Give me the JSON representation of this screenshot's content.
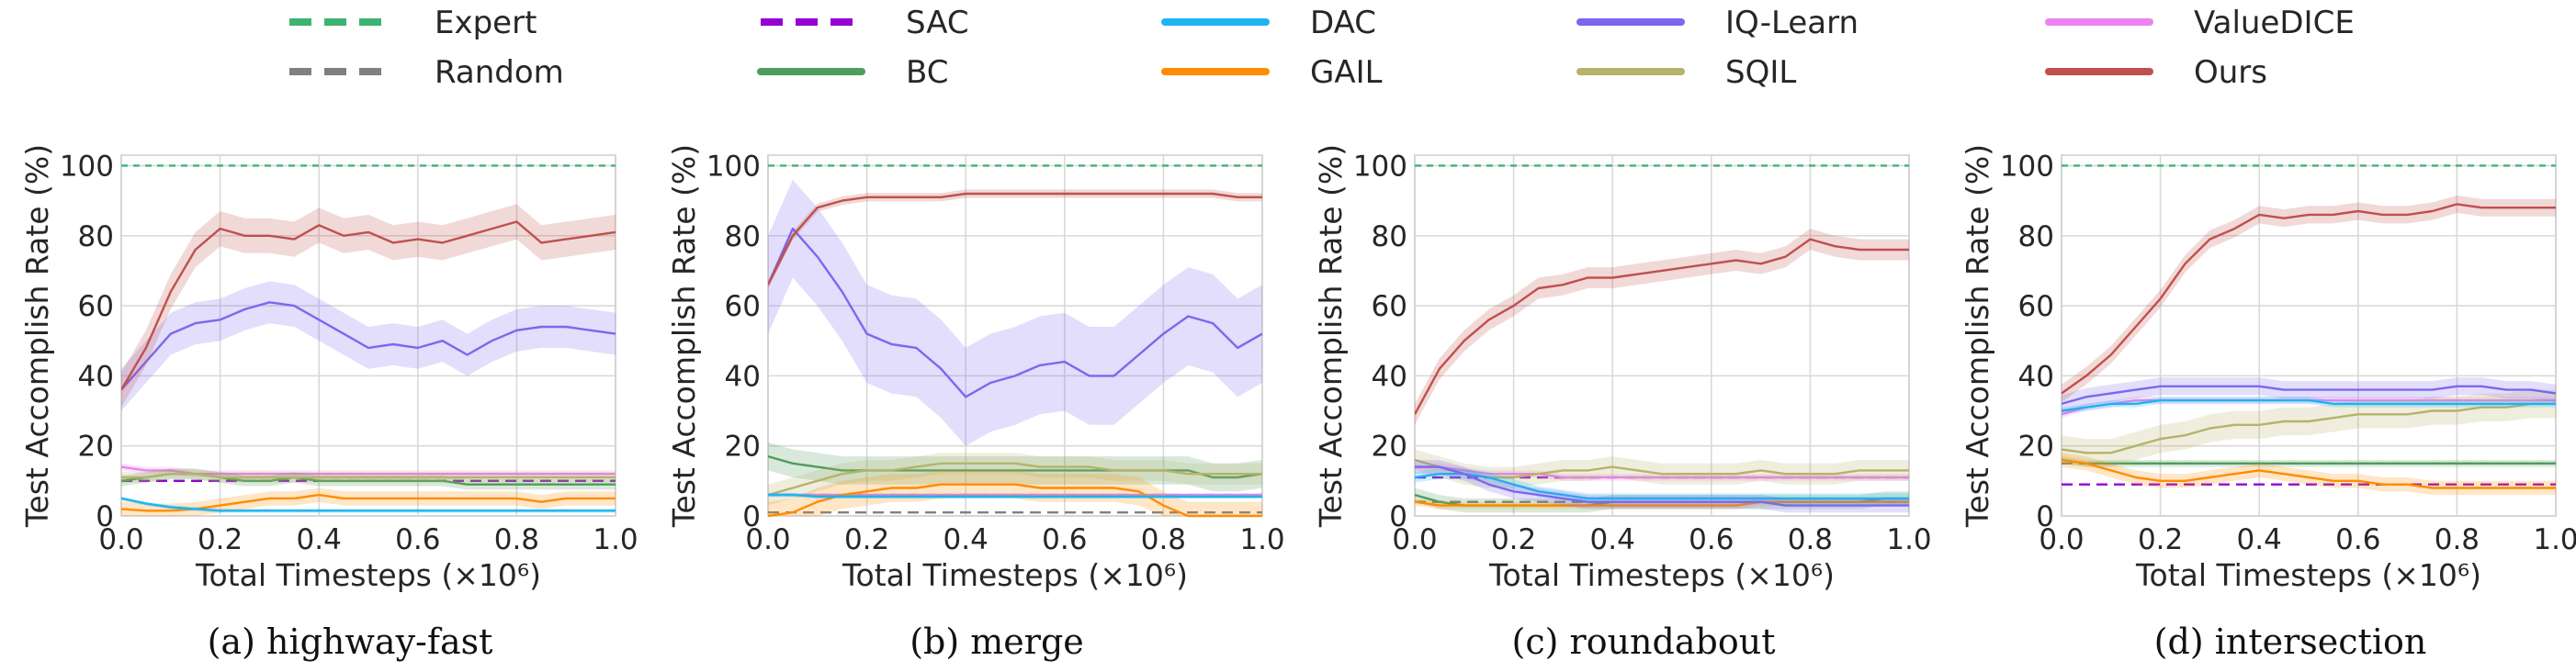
{
  "legend": {
    "placement": "top",
    "entries": [
      {
        "name": "Expert",
        "color": "#3cb371",
        "dash": true
      },
      {
        "name": "SAC",
        "color": "#9400d3",
        "dash": true
      },
      {
        "name": "DAC",
        "color": "#1eb4f0",
        "dash": false
      },
      {
        "name": "IQ-Learn",
        "color": "#7b68ee",
        "dash": false
      },
      {
        "name": "ValueDICE",
        "color": "#ee82ee",
        "dash": false
      },
      {
        "name": "Random",
        "color": "#808080",
        "dash": true
      },
      {
        "name": "BC",
        "color": "#4f9d5b",
        "dash": false
      },
      {
        "name": "GAIL",
        "color": "#ff8c00",
        "dash": false
      },
      {
        "name": "SQIL",
        "color": "#b5b36b",
        "dash": false
      },
      {
        "name": "Ours",
        "color": "#c0504d",
        "dash": false
      }
    ]
  },
  "chart_data": [
    {
      "type": "line",
      "caption": "(a) highway-fast",
      "xlabel": "Total Timesteps (×10⁶)",
      "ylabel": "Test Accomplish Rate (%)",
      "xlim": [
        0,
        1
      ],
      "ylim": [
        0,
        103
      ],
      "xticks": [
        "0.0",
        "0.2",
        "0.4",
        "0.6",
        "0.8",
        "1.0"
      ],
      "yticks": [
        "0",
        "20",
        "40",
        "60",
        "80",
        "100"
      ],
      "grid": true,
      "x": [
        0,
        0.05,
        0.1,
        0.15,
        0.2,
        0.25,
        0.3,
        0.35,
        0.4,
        0.45,
        0.5,
        0.55,
        0.6,
        0.65,
        0.7,
        0.75,
        0.8,
        0.85,
        0.9,
        0.95,
        1.0
      ],
      "series": [
        {
          "name": "Expert",
          "const": 100
        },
        {
          "name": "Random",
          "const": 10
        },
        {
          "name": "SAC",
          "const": 10
        },
        {
          "name": "Ours",
          "values": [
            36,
            48,
            64,
            76,
            82,
            80,
            80,
            79,
            83,
            80,
            81,
            78,
            79,
            78,
            80,
            82,
            84,
            78,
            79,
            80,
            81
          ],
          "band": 5
        },
        {
          "name": "IQ-Learn",
          "values": [
            36,
            44,
            52,
            55,
            56,
            59,
            61,
            60,
            56,
            52,
            48,
            49,
            48,
            50,
            46,
            50,
            53,
            54,
            54,
            53,
            52
          ],
          "band": 6
        },
        {
          "name": "ValueDICE",
          "values": [
            14,
            13,
            13,
            12,
            12,
            12,
            12,
            12,
            12,
            12,
            12,
            12,
            12,
            12,
            12,
            12,
            12,
            12,
            12,
            12,
            12
          ],
          "band": 1
        },
        {
          "name": "BC",
          "values": [
            10,
            11,
            12,
            12,
            11,
            10,
            10,
            11,
            10,
            10,
            10,
            10,
            10,
            10,
            9,
            9,
            9,
            9,
            9,
            9,
            9
          ],
          "band": 1.5
        },
        {
          "name": "SQIL",
          "values": [
            11,
            11,
            12,
            12,
            11,
            11,
            11,
            11,
            11,
            11,
            11,
            11,
            11,
            11,
            11,
            11,
            11,
            11,
            11,
            11,
            11
          ],
          "band": 1.5
        },
        {
          "name": "GAIL",
          "values": [
            2,
            1.5,
            1.5,
            2,
            3,
            4,
            5,
            5,
            6,
            5,
            5,
            5,
            5,
            5,
            5,
            5,
            5,
            4,
            5,
            5,
            5
          ],
          "band": 2
        },
        {
          "name": "DAC",
          "values": [
            5,
            3.5,
            2.5,
            2,
            1.5,
            1.5,
            1.5,
            1.5,
            1.5,
            1.5,
            1.5,
            1.5,
            1.5,
            1.5,
            1.5,
            1.5,
            1.5,
            1.5,
            1.5,
            1.5,
            1.5
          ],
          "band": 0.6
        }
      ]
    },
    {
      "type": "line",
      "caption": "(b) merge",
      "xlabel": "Total Timesteps (×10⁶)",
      "ylabel": "Test Accomplish Rate (%)",
      "xlim": [
        0,
        1
      ],
      "ylim": [
        0,
        103
      ],
      "xticks": [
        "0.0",
        "0.2",
        "0.4",
        "0.6",
        "0.8",
        "1.0"
      ],
      "yticks": [
        "0",
        "20",
        "40",
        "60",
        "80",
        "100"
      ],
      "grid": true,
      "x": [
        0,
        0.05,
        0.1,
        0.15,
        0.2,
        0.25,
        0.3,
        0.35,
        0.4,
        0.45,
        0.5,
        0.55,
        0.6,
        0.65,
        0.7,
        0.75,
        0.8,
        0.85,
        0.9,
        0.95,
        1.0
      ],
      "series": [
        {
          "name": "Expert",
          "const": 100
        },
        {
          "name": "Random",
          "const": 1
        },
        {
          "name": "SAC",
          "const": 6
        },
        {
          "name": "Ours",
          "values": [
            66,
            80,
            88,
            90,
            91,
            91,
            91,
            91,
            92,
            92,
            92,
            92,
            92,
            92,
            92,
            92,
            92,
            92,
            92,
            91,
            91
          ],
          "band": 1.2
        },
        {
          "name": "IQ-Learn",
          "values": [
            66,
            82,
            74,
            64,
            52,
            49,
            48,
            42,
            34,
            38,
            40,
            43,
            44,
            40,
            40,
            46,
            52,
            57,
            55,
            48,
            52
          ],
          "band": 14
        },
        {
          "name": "BC",
          "values": [
            17,
            15,
            14,
            13,
            13,
            13,
            13,
            13,
            13,
            13,
            13,
            13,
            13,
            13,
            13,
            13,
            13,
            13,
            11,
            11,
            12
          ],
          "band": 4
        },
        {
          "name": "SQIL",
          "values": [
            6,
            8,
            10,
            12,
            13,
            13,
            14,
            15,
            15,
            15,
            15,
            14,
            14,
            14,
            13,
            13,
            13,
            12,
            12,
            12,
            12
          ],
          "band": 3
        },
        {
          "name": "GAIL",
          "values": [
            0,
            1,
            4,
            6,
            7,
            8,
            8,
            9,
            9,
            9,
            9,
            8,
            8,
            8,
            8,
            7,
            3,
            0,
            0,
            0,
            0
          ],
          "band": 4
        },
        {
          "name": "DAC",
          "values": [
            6,
            6,
            5.5,
            5.5,
            5.5,
            5.5,
            5.5,
            5.5,
            5.5,
            5.5,
            5.5,
            5.5,
            5.5,
            5.5,
            5.5,
            5.5,
            5.5,
            5.5,
            5.5,
            5.5,
            5.5
          ],
          "band": 0.6
        },
        {
          "name": "ValueDICE",
          "values": [
            6,
            6,
            6,
            6,
            6,
            6,
            6,
            6,
            6,
            6,
            6,
            6,
            6,
            6,
            6,
            6,
            6,
            6,
            6,
            6,
            6
          ],
          "band": 0.4
        }
      ]
    },
    {
      "type": "line",
      "caption": "(c) roundabout",
      "xlabel": "Total Timesteps (×10⁶)",
      "ylabel": "Test Accomplish Rate (%)",
      "xlim": [
        0,
        1
      ],
      "ylim": [
        0,
        103
      ],
      "xticks": [
        "0.0",
        "0.2",
        "0.4",
        "0.6",
        "0.8",
        "1.0"
      ],
      "yticks": [
        "0",
        "20",
        "40",
        "60",
        "80",
        "100"
      ],
      "grid": true,
      "x": [
        0,
        0.05,
        0.1,
        0.15,
        0.2,
        0.25,
        0.3,
        0.35,
        0.4,
        0.45,
        0.5,
        0.55,
        0.6,
        0.65,
        0.7,
        0.75,
        0.8,
        0.85,
        0.9,
        0.95,
        1.0
      ],
      "series": [
        {
          "name": "Expert",
          "const": 100
        },
        {
          "name": "Random",
          "const": 4
        },
        {
          "name": "SAC",
          "const": 11
        },
        {
          "name": "Ours",
          "values": [
            29,
            42,
            50,
            56,
            60,
            65,
            66,
            68,
            68,
            69,
            70,
            71,
            72,
            73,
            72,
            74,
            79,
            77,
            76,
            76,
            76
          ],
          "band": 3
        },
        {
          "name": "IQ-Learn",
          "values": [
            14,
            14,
            12,
            9,
            7,
            6,
            5,
            4,
            4,
            4,
            4,
            4,
            4,
            4,
            4,
            3,
            3,
            3,
            3,
            3,
            3
          ],
          "band": 2
        },
        {
          "name": "DAC",
          "values": [
            11,
            12,
            12,
            11,
            9,
            7,
            6,
            5,
            5,
            5,
            5,
            5,
            5,
            5,
            5,
            5,
            5,
            5,
            5,
            5,
            5
          ],
          "band": 1.5
        },
        {
          "name": "SQIL",
          "values": [
            16,
            14,
            12,
            11,
            11,
            12,
            13,
            13,
            14,
            13,
            12,
            12,
            12,
            12,
            13,
            12,
            12,
            12,
            13,
            13,
            13
          ],
          "band": 3
        },
        {
          "name": "BC",
          "values": [
            6,
            4,
            3,
            3,
            3,
            3,
            3,
            3,
            4,
            4,
            4,
            4,
            4,
            4,
            4,
            4,
            4,
            4,
            4,
            5,
            5
          ],
          "band": 2
        },
        {
          "name": "GAIL",
          "values": [
            4,
            3,
            3,
            3,
            3,
            3,
            3,
            3,
            3,
            3,
            3,
            3,
            3,
            3,
            4,
            4,
            4,
            4,
            4,
            4,
            4
          ],
          "band": 1
        },
        {
          "name": "ValueDICE",
          "values": [
            14,
            14,
            13,
            12,
            12,
            12,
            11,
            11,
            11,
            11,
            11,
            11,
            11,
            11,
            11,
            11,
            11,
            11,
            11,
            11,
            11
          ],
          "band": 1
        }
      ]
    },
    {
      "type": "line",
      "caption": "(d) intersection",
      "xlabel": "Total Timesteps (×10⁶)",
      "ylabel": "Test Accomplish Rate (%)",
      "xlim": [
        0,
        1
      ],
      "ylim": [
        0,
        103
      ],
      "xticks": [
        "0.0",
        "0.2",
        "0.4",
        "0.6",
        "0.8",
        "1.0"
      ],
      "yticks": [
        "0",
        "20",
        "40",
        "60",
        "80",
        "100"
      ],
      "grid": true,
      "x": [
        0,
        0.05,
        0.1,
        0.15,
        0.2,
        0.25,
        0.3,
        0.35,
        0.4,
        0.45,
        0.5,
        0.55,
        0.6,
        0.65,
        0.7,
        0.75,
        0.8,
        0.85,
        0.9,
        0.95,
        1.0
      ],
      "series": [
        {
          "name": "Expert",
          "const": 100
        },
        {
          "name": "Random",
          "const": 15
        },
        {
          "name": "SAC",
          "const": 9
        },
        {
          "name": "Ours",
          "values": [
            35,
            40,
            46,
            54,
            62,
            72,
            79,
            82,
            86,
            85,
            86,
            86,
            87,
            86,
            86,
            87,
            89,
            88,
            88,
            88,
            88
          ],
          "band": 2.5
        },
        {
          "name": "IQ-Learn",
          "values": [
            32,
            34,
            35,
            36,
            37,
            37,
            37,
            37,
            37,
            36,
            36,
            36,
            36,
            36,
            36,
            36,
            37,
            37,
            36,
            36,
            35
          ],
          "band": 2.5
        },
        {
          "name": "ValueDICE",
          "values": [
            29,
            31,
            32,
            33,
            33,
            33,
            33,
            33,
            33,
            33,
            33,
            33,
            33,
            33,
            33,
            33,
            33,
            33,
            33,
            33,
            33
          ],
          "band": 1
        },
        {
          "name": "DAC",
          "values": [
            30,
            31,
            32,
            32,
            33,
            33,
            33,
            33,
            33,
            33,
            33,
            32,
            32,
            32,
            32,
            32,
            32,
            32,
            32,
            32,
            32
          ],
          "band": 1
        },
        {
          "name": "SQIL",
          "values": [
            19,
            18,
            18,
            20,
            22,
            23,
            25,
            26,
            26,
            27,
            27,
            28,
            29,
            29,
            29,
            30,
            30,
            31,
            31,
            32,
            32
          ],
          "band": 4
        },
        {
          "name": "BC",
          "values": [
            16,
            15,
            15,
            15,
            15,
            15,
            15,
            15,
            15,
            15,
            15,
            15,
            15,
            15,
            15,
            15,
            15,
            15,
            15,
            15,
            15
          ],
          "band": 1
        },
        {
          "name": "GAIL",
          "values": [
            16,
            15,
            13,
            11,
            10,
            10,
            11,
            12,
            13,
            12,
            11,
            10,
            10,
            9,
            9,
            8,
            8,
            8,
            8,
            8,
            8
          ],
          "band": 2
        }
      ]
    }
  ]
}
